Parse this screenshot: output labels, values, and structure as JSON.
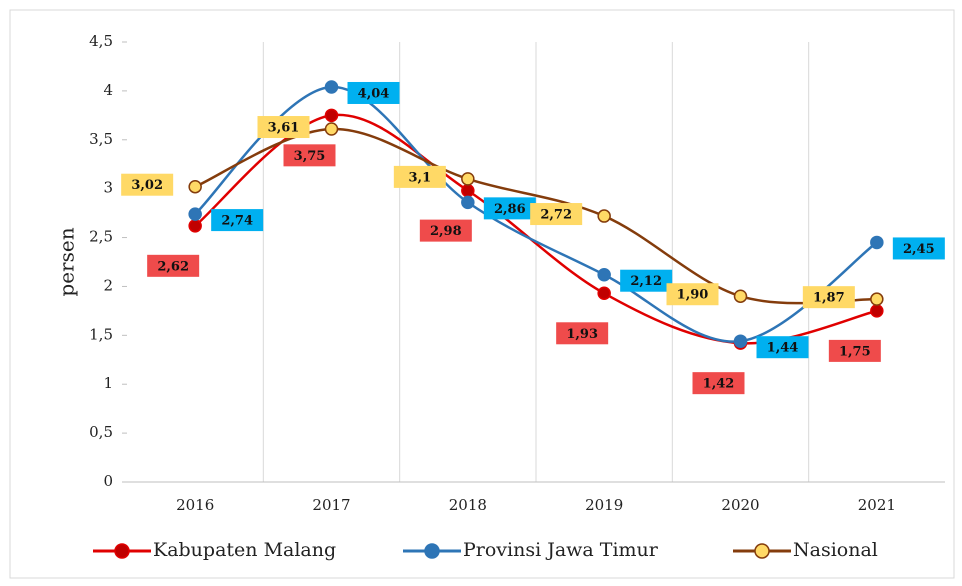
{
  "chart_data": {
    "type": "line",
    "y_label": "persen",
    "categories": [
      "2016",
      "2017",
      "2018",
      "2019",
      "2020",
      "2021"
    ],
    "series": [
      {
        "name": "Kabupaten Malang",
        "color": "#e00000",
        "marker_fill": "#c00000",
        "label_bg": "#ef4b4b",
        "values": [
          2.62,
          3.75,
          2.98,
          1.93,
          1.42,
          1.75
        ],
        "value_labels": [
          "2,62",
          "3,75",
          "2,98",
          "1,93",
          "1,42",
          "1,75"
        ]
      },
      {
        "name": "Provinsi Jawa Timur",
        "color": "#2e75b6",
        "marker_fill": "#2e75b6",
        "label_bg": "#00b0f0",
        "values": [
          2.74,
          4.04,
          2.86,
          2.12,
          1.44,
          2.45
        ],
        "value_labels": [
          "2,74",
          "4,04",
          "2,86",
          "2,12",
          "1,44",
          "2,45"
        ]
      },
      {
        "name": "Nasional",
        "color": "#843c0c",
        "marker_fill": "#ffd966",
        "label_bg": "#ffd966",
        "values": [
          3.02,
          3.61,
          3.1,
          2.72,
          1.9,
          1.87
        ],
        "value_labels": [
          "3,02",
          "3,61",
          "3,1",
          "2,72",
          "1,90",
          "1,87"
        ]
      }
    ],
    "ylim": [
      0,
      4.5
    ],
    "yticks": [
      0,
      {
        "value": 0.5,
        "label": "0,5"
      },
      1,
      {
        "value": 1.5,
        "label": "1,5"
      },
      2,
      {
        "value": 2.5,
        "label": "2,5"
      },
      3,
      {
        "value": 3.5,
        "label": "3,5"
      },
      4,
      {
        "value": 4.5,
        "label": "4,5"
      }
    ],
    "smooth": true
  }
}
